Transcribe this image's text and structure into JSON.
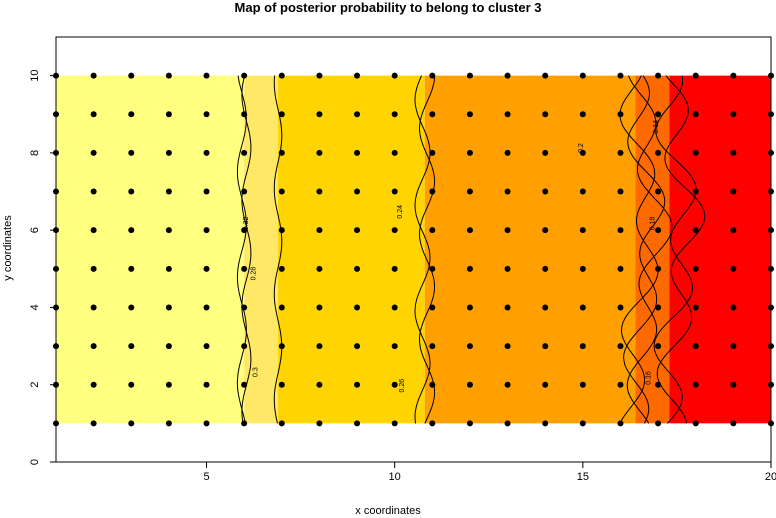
{
  "chart_data": {
    "type": "heatmap",
    "title": "Map of posterior probability to belong to cluster  3",
    "xlabel": "x coordinates",
    "ylabel": "y coordinates",
    "xlim": [
      1,
      20
    ],
    "ylim": [
      0,
      11
    ],
    "x_ticks": [
      5,
      10,
      15,
      20
    ],
    "y_ticks": [
      0,
      2,
      4,
      6,
      8,
      10
    ],
    "grid_extent": {
      "x": [
        1,
        20
      ],
      "y": [
        1,
        10
      ]
    },
    "color_bands": [
      {
        "x_from": 1,
        "x_to": 6.0,
        "color": "#ffff80"
      },
      {
        "x_from": 6.0,
        "x_to": 6.9,
        "color": "#ffe866"
      },
      {
        "x_from": 6.9,
        "x_to": 10.8,
        "color": "#ffd400"
      },
      {
        "x_from": 10.8,
        "x_to": 16.4,
        "color": "#ff9f00"
      },
      {
        "x_from": 16.4,
        "x_to": 17.3,
        "color": "#ff6a00"
      },
      {
        "x_from": 17.3,
        "x_to": 20,
        "color": "#ff0000"
      }
    ],
    "contour_labels": [
      "0.32",
      "0.28",
      "0.3",
      "0.24",
      "0.26",
      "0.2",
      "0.18",
      "0.16",
      "0.14"
    ],
    "points": {
      "x": [
        1,
        2,
        3,
        4,
        5,
        6,
        7,
        8,
        9,
        10,
        11,
        12,
        13,
        14,
        15,
        16,
        17,
        18,
        19,
        20
      ],
      "y": [
        1,
        2,
        3,
        4,
        5,
        6,
        7,
        8,
        9,
        10
      ]
    }
  }
}
